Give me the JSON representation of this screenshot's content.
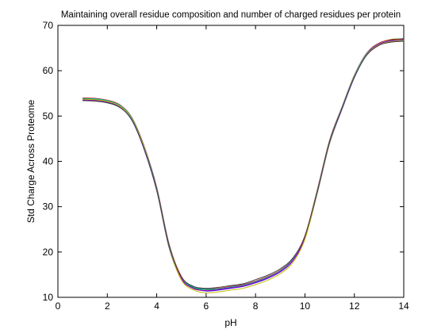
{
  "chart_data": {
    "type": "line",
    "title": "Maintaining overall residue composition and number of charged residues per protein",
    "xlabel": "pH",
    "ylabel": "Std Charge Across Proteome",
    "xlim": [
      0,
      14
    ],
    "ylim": [
      10,
      70
    ],
    "xticks": [
      "0",
      "2",
      "4",
      "6",
      "8",
      "10",
      "12",
      "14"
    ],
    "yticks": [
      "10",
      "20",
      "30",
      "40",
      "50",
      "60",
      "70"
    ],
    "grid": false,
    "x": [
      1.0,
      1.5,
      2.0,
      2.5,
      3.0,
      3.5,
      4.0,
      4.5,
      5.0,
      5.5,
      6.0,
      6.5,
      7.0,
      7.5,
      8.0,
      8.5,
      9.0,
      9.5,
      10.0,
      10.5,
      11.0,
      11.5,
      12.0,
      12.5,
      13.0,
      13.5,
      14.0
    ],
    "series": [
      {
        "color": "#0000ff",
        "values": [
          53.5,
          53.4,
          53.0,
          52.0,
          49.0,
          42.5,
          33.5,
          21.0,
          14.0,
          12.0,
          11.4,
          11.6,
          12.0,
          12.4,
          13.2,
          14.2,
          15.6,
          18.0,
          23.0,
          33.0,
          44.0,
          51.5,
          58.5,
          63.5,
          65.8,
          66.7,
          67.1
        ]
      },
      {
        "color": "#007f00",
        "values": [
          53.8,
          53.7,
          53.3,
          52.3,
          49.4,
          42.9,
          34.0,
          21.5,
          14.3,
          12.1,
          11.7,
          11.8,
          12.2,
          12.6,
          13.4,
          14.4,
          15.8,
          18.2,
          23.3,
          33.4,
          44.4,
          51.8,
          58.8,
          63.7,
          66.0,
          66.9,
          67.0
        ]
      },
      {
        "color": "#ff0000",
        "values": [
          54.0,
          53.9,
          53.5,
          52.5,
          49.6,
          43.2,
          34.3,
          21.8,
          14.6,
          12.3,
          11.9,
          12.0,
          12.4,
          12.8,
          13.6,
          14.6,
          16.0,
          18.4,
          23.6,
          33.7,
          44.7,
          52.0,
          59.0,
          63.9,
          66.1,
          66.8,
          66.9
        ]
      },
      {
        "color": "#00bfbf",
        "values": [
          53.9,
          53.8,
          53.4,
          52.4,
          49.5,
          43.0,
          34.1,
          21.6,
          14.4,
          12.2,
          11.8,
          11.9,
          12.3,
          12.7,
          13.5,
          14.5,
          15.9,
          18.3,
          23.4,
          33.5,
          44.5,
          51.9,
          58.9,
          63.8,
          66.0,
          66.6,
          66.8
        ]
      },
      {
        "color": "#bf00bf",
        "values": [
          53.6,
          53.5,
          53.1,
          52.1,
          49.2,
          42.7,
          33.8,
          21.3,
          14.1,
          11.9,
          11.5,
          11.7,
          12.1,
          12.5,
          13.3,
          14.3,
          15.7,
          18.1,
          23.2,
          33.2,
          44.2,
          51.6,
          58.6,
          63.6,
          65.9,
          66.5,
          66.7
        ]
      },
      {
        "color": "#bfbf00",
        "values": [
          53.7,
          53.6,
          53.2,
          52.2,
          49.3,
          42.8,
          33.6,
          21.2,
          13.8,
          11.6,
          11.0,
          11.2,
          11.6,
          12.0,
          12.8,
          13.8,
          15.2,
          17.6,
          22.8,
          33.1,
          44.1,
          51.7,
          58.7,
          63.5,
          65.7,
          66.4,
          66.6
        ]
      },
      {
        "color": "#3f3f3f",
        "values": [
          53.4,
          53.3,
          52.9,
          51.9,
          49.1,
          42.6,
          33.7,
          21.4,
          14.5,
          12.4,
          12.0,
          12.2,
          12.6,
          13.0,
          13.9,
          14.9,
          16.3,
          18.6,
          23.5,
          33.3,
          44.3,
          51.7,
          58.6,
          63.4,
          65.6,
          66.3,
          66.5
        ]
      }
    ]
  }
}
